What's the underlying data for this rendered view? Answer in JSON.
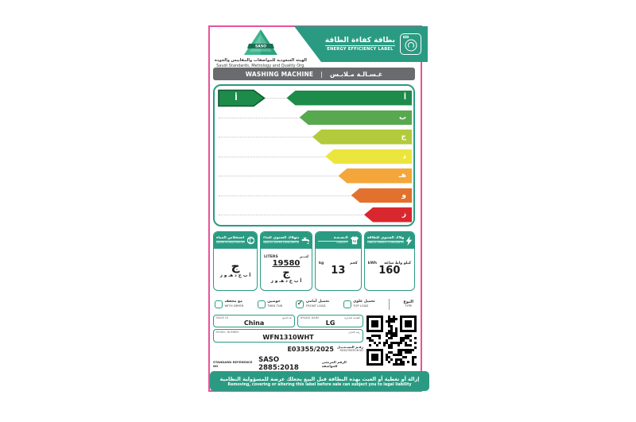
{
  "colors": {
    "teal": "#2a9b82",
    "pink_border": "#ea5297",
    "bar_gray": "#6a6b6e",
    "rating_green": "#1d8b4a",
    "rating_border": "#0e5a31"
  },
  "header": {
    "org_name_ar": "الهيئة السعودية للمواصفات والمقاييس والجودة",
    "org_name_en": "Saudi Standards, Metrology and Quality Org.",
    "saso_logo_text": "SASO",
    "banner_title_ar": "بطاقة كفاءة الطاقة",
    "banner_title_en": "ENERGY EFFICIENCY LABEL"
  },
  "product_bar": {
    "en": "WASHING MACHINE",
    "separator": "|",
    "ar": "غـسـالـة مـلابـس"
  },
  "rating": {
    "value": "أ",
    "color": "#1d8b4a",
    "border": "#0e5a31"
  },
  "scale": {
    "rows": [
      {
        "letter": "أ",
        "color": "#1d8b4a",
        "width": "63%"
      },
      {
        "letter": "ب",
        "color": "#57a84e",
        "width": "56.5%"
      },
      {
        "letter": "ج",
        "color": "#b2ca3b",
        "width": "50%"
      },
      {
        "letter": "د",
        "color": "#ece53d",
        "width": "43.5%"
      },
      {
        "letter": "هـ",
        "color": "#f4a63a",
        "width": "37%"
      },
      {
        "letter": "و",
        "color": "#e2712d",
        "width": "30.5%"
      },
      {
        "letter": "ز",
        "color": "#d9272f",
        "width": "24%"
      }
    ]
  },
  "metrics": [
    {
      "title_ar": "كفاءة استخلاص المياه",
      "title_en": "WATER EXTRACTION EFFICIENCY",
      "rating": "ج",
      "scale_letters": "أ ب ج د هـ و ز"
    },
    {
      "title_ar": "الاستهلاك السنوي للماء",
      "title_en": "ANNUAL WATER CONSUMPTION",
      "unit_en": "LITERS",
      "unit_ar": "لتـــر",
      "value": "19580",
      "rating": "ج",
      "scale_letters": "أ ب ج د هـ و ز"
    },
    {
      "title_ar": "الـسـعـة",
      "title_en": "CAPACITY",
      "unit_en": "kg",
      "unit_ar": "كجم",
      "value": "13"
    },
    {
      "title_ar": "الاستهلاك السنوي للطاقة",
      "title_en": "ANNUAL ENERGY CONSUMPTION",
      "unit_en": "kWh",
      "unit_ar": "كيلو واط ساعة",
      "value": "160"
    }
  ],
  "type_row": {
    "label_ar": "النوع",
    "label_en": "TYPE",
    "options": [
      {
        "ar": "مع مجفف",
        "en": "WITH DRYER",
        "checked": false
      },
      {
        "ar": "حوضين",
        "en": "TWIN TUB",
        "checked": false
      },
      {
        "ar": "تحميل أمامي",
        "en": "FRONT LOAD",
        "checked": true,
        "mark": "✓"
      },
      {
        "ar": "تحميل علوي",
        "en": "TOP LOAD",
        "checked": false
      }
    ]
  },
  "info": {
    "made_in": {
      "label_en": "MADE IN",
      "label_ar": "بلد الصنع",
      "value": "China"
    },
    "brand": {
      "label_en": "BRAND NAME",
      "label_ar": "العلامة التجارية",
      "value": "LG"
    },
    "model": {
      "label_en": "MODEL NUMBER",
      "label_ar": "رقم الطراز",
      "value": "WFN1310WHT"
    },
    "registration": {
      "value": "E03355/2025",
      "label_ar": "رقـم التسـجـيـل",
      "label_en": "REGISTRATION NO"
    },
    "standard": {
      "label_en": "STANDARD REFERENCE NO",
      "value": "SASO 2885:2018",
      "label_ar": "الرقم المرجعي للمواصفة"
    }
  },
  "footer": {
    "warning_ar": "إزالة أو تغطية أو العبث بهذه البطاقة قبل البيع يجعلك عرضة للمسؤولية النظامية",
    "warning_en": "Removing, covering or altering this label before sale can subject you to legal liability"
  }
}
